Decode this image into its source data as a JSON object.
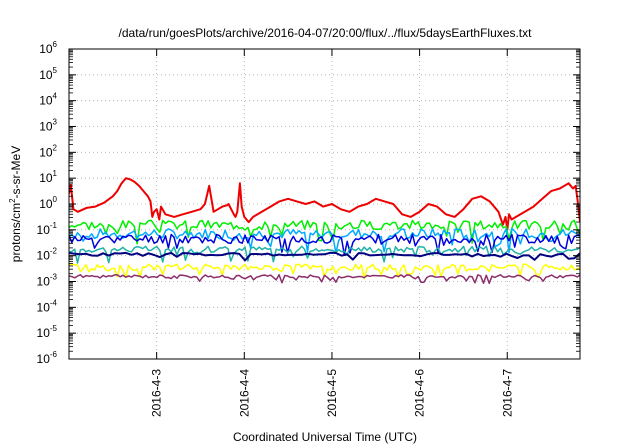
{
  "chart_data": {
    "type": "line",
    "title": "/data/run/goesPlots/archive/2016-04-07/20:00/flux/../flux/5daysEarthFluxes.txt",
    "xlabel": "Coordinated Universal Time (UTC)",
    "ylabel_parts": {
      "pre": "protons/cm",
      "sup": "2",
      "post": "-s-sr-MeV"
    },
    "yscale": "log",
    "ylim": [
      -6,
      6
    ],
    "y_ticks": [
      {
        "base": "10",
        "exp": "-6",
        "value": -6
      },
      {
        "base": "10",
        "exp": "-5",
        "value": -5
      },
      {
        "base": "10",
        "exp": "-4",
        "value": -4
      },
      {
        "base": "10",
        "exp": "-3",
        "value": -3
      },
      {
        "base": "10",
        "exp": "-2",
        "value": -2
      },
      {
        "base": "10",
        "exp": "-1",
        "value": -1
      },
      {
        "base": "10",
        "exp": "0",
        "value": 0
      },
      {
        "base": "10",
        "exp": "1",
        "value": 1
      },
      {
        "base": "10",
        "exp": "2",
        "value": 2
      },
      {
        "base": "10",
        "exp": "3",
        "value": 3
      },
      {
        "base": "10",
        "exp": "4",
        "value": 4
      },
      {
        "base": "10",
        "exp": "5",
        "value": 5
      },
      {
        "base": "10",
        "exp": "6",
        "value": 6
      }
    ],
    "xlim": [
      0.0,
      5.83
    ],
    "x_ticks": [
      {
        "label": "2016-4-3",
        "value": 1.0
      },
      {
        "label": "2016-4-4",
        "value": 2.0
      },
      {
        "label": "2016-4-5",
        "value": 3.0
      },
      {
        "label": "2016-4-6",
        "value": 4.0
      },
      {
        "label": "2016-4-7",
        "value": 5.0
      }
    ],
    "grid": true,
    "legend": "none",
    "series": [
      {
        "color": "#ee0000",
        "width": 2.0,
        "x": [
          0.0,
          0.02,
          0.05,
          0.1,
          0.2,
          0.3,
          0.4,
          0.5,
          0.55,
          0.6,
          0.65,
          0.7,
          0.75,
          0.8,
          0.85,
          0.9,
          0.93,
          0.95,
          0.97,
          1.0,
          1.03,
          1.05,
          1.1,
          1.2,
          1.3,
          1.4,
          1.5,
          1.55,
          1.6,
          1.65,
          1.7,
          1.75,
          1.8,
          1.82,
          1.85,
          1.88,
          1.9,
          1.92,
          1.95,
          1.97,
          2.0,
          2.05,
          2.1,
          2.2,
          2.3,
          2.4,
          2.5,
          2.6,
          2.7,
          2.8,
          2.9,
          3.0,
          3.1,
          3.2,
          3.3,
          3.4,
          3.5,
          3.6,
          3.7,
          3.8,
          3.9,
          4.0,
          4.1,
          4.2,
          4.3,
          4.4,
          4.5,
          4.6,
          4.7,
          4.8,
          4.9,
          4.95,
          4.98,
          5.0,
          5.02,
          5.05,
          5.1,
          5.2,
          5.3,
          5.4,
          5.5,
          5.6,
          5.7,
          5.75,
          5.78,
          5.8,
          5.83
        ],
        "y": [
          0.4,
          0.75,
          -0.2,
          -0.3,
          -0.15,
          -0.1,
          0.05,
          0.3,
          0.5,
          0.8,
          1.0,
          0.95,
          0.85,
          0.7,
          0.5,
          0.3,
          0.1,
          -0.5,
          -0.3,
          -0.2,
          -0.6,
          -0.1,
          -0.4,
          -0.5,
          -0.4,
          -0.3,
          -0.2,
          0.0,
          0.7,
          -0.3,
          -0.2,
          -0.1,
          -0.05,
          0.0,
          -0.2,
          -0.4,
          -0.5,
          -0.3,
          0.8,
          -0.1,
          -0.5,
          -0.7,
          -0.5,
          -0.3,
          -0.1,
          0.1,
          0.2,
          0.1,
          0.0,
          0.1,
          -0.1,
          0.0,
          -0.2,
          -0.3,
          -0.1,
          0.0,
          0.2,
          0.1,
          0.0,
          -0.4,
          -0.5,
          -0.3,
          0.0,
          -0.1,
          -0.4,
          -0.5,
          -0.2,
          0.2,
          0.3,
          0.1,
          -0.3,
          -0.8,
          -0.5,
          -1.0,
          -0.4,
          -0.6,
          -0.5,
          -0.3,
          -0.1,
          0.2,
          0.5,
          0.6,
          0.8,
          0.6,
          0.7,
          0.2,
          -0.7
        ]
      },
      {
        "color": "#00ee00",
        "width": 1.5,
        "base": -0.8,
        "amp": 0.18,
        "spikes": 0.6,
        "seed": 3,
        "n": 180
      },
      {
        "color": "#00aaff",
        "width": 1.5,
        "base": -1.15,
        "amp": 0.2,
        "spikes": 0.7,
        "seed": 7,
        "n": 180
      },
      {
        "color": "#0000dd",
        "width": 1.5,
        "base": -1.35,
        "amp": 0.18,
        "spikes": 0.6,
        "seed": 11,
        "n": 180
      },
      {
        "color": "#20b2aa",
        "width": 1.5,
        "base": -1.75,
        "amp": 0.12,
        "spikes": 0.5,
        "seed": 17,
        "n": 180
      },
      {
        "color": "#000080",
        "width": 2.0,
        "base": -1.95,
        "amp": 0.06,
        "spikes": 0.2,
        "seed": 23,
        "n": 90
      },
      {
        "color": "#ffff00",
        "width": 1.5,
        "base": -2.45,
        "amp": 0.12,
        "spikes": 0.4,
        "seed": 29,
        "n": 180
      },
      {
        "color": "#8b2e6b",
        "width": 1.5,
        "base": -2.8,
        "amp": 0.06,
        "spikes": 0.25,
        "seed": 31,
        "n": 180
      }
    ]
  }
}
